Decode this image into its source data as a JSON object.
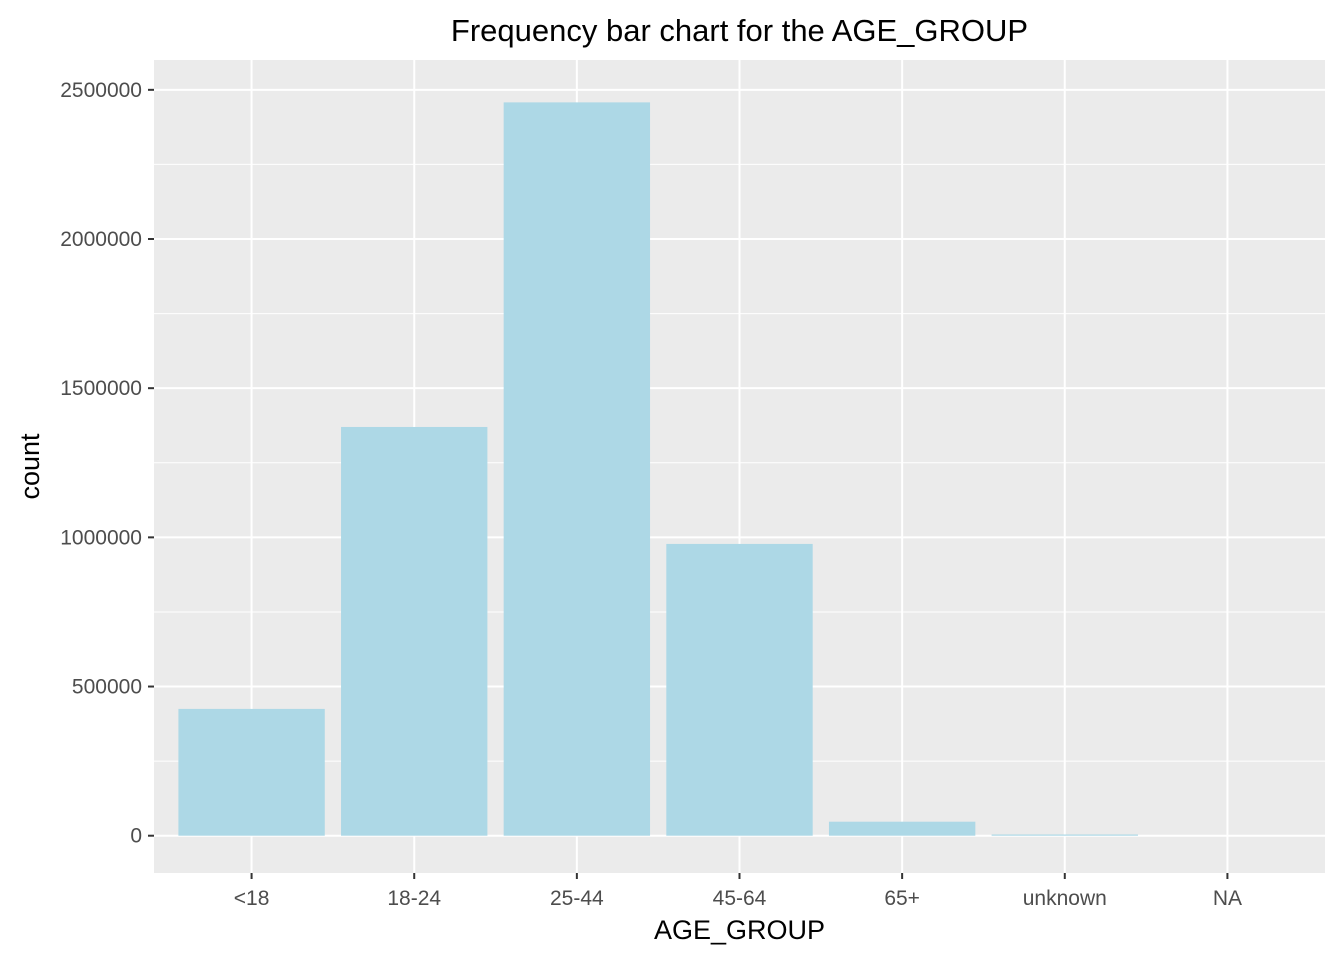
{
  "chart_data": {
    "type": "bar",
    "title": "Frequency bar chart for the AGE_GROUP",
    "xlabel": "AGE_GROUP",
    "ylabel": "count",
    "categories": [
      "<18",
      "18-24",
      "25-44",
      "45-64",
      "65+",
      "unknown",
      "NA"
    ],
    "values": [
      425000,
      1370000,
      2458000,
      978000,
      47000,
      4000,
      0
    ],
    "ylim": [
      -125000,
      2600000
    ],
    "y_ticks": [
      0,
      500000,
      1000000,
      1500000,
      2000000,
      2500000
    ],
    "y_tick_labels": [
      "0",
      "500000",
      "1000000",
      "1500000",
      "2000000",
      "2500000"
    ],
    "grid": true,
    "colors": {
      "bar": "#add8e6",
      "panel_background": "#ebebeb",
      "grid": "#ffffff",
      "tick_mark": "#333333",
      "tick_text": "#4d4d4d"
    }
  }
}
